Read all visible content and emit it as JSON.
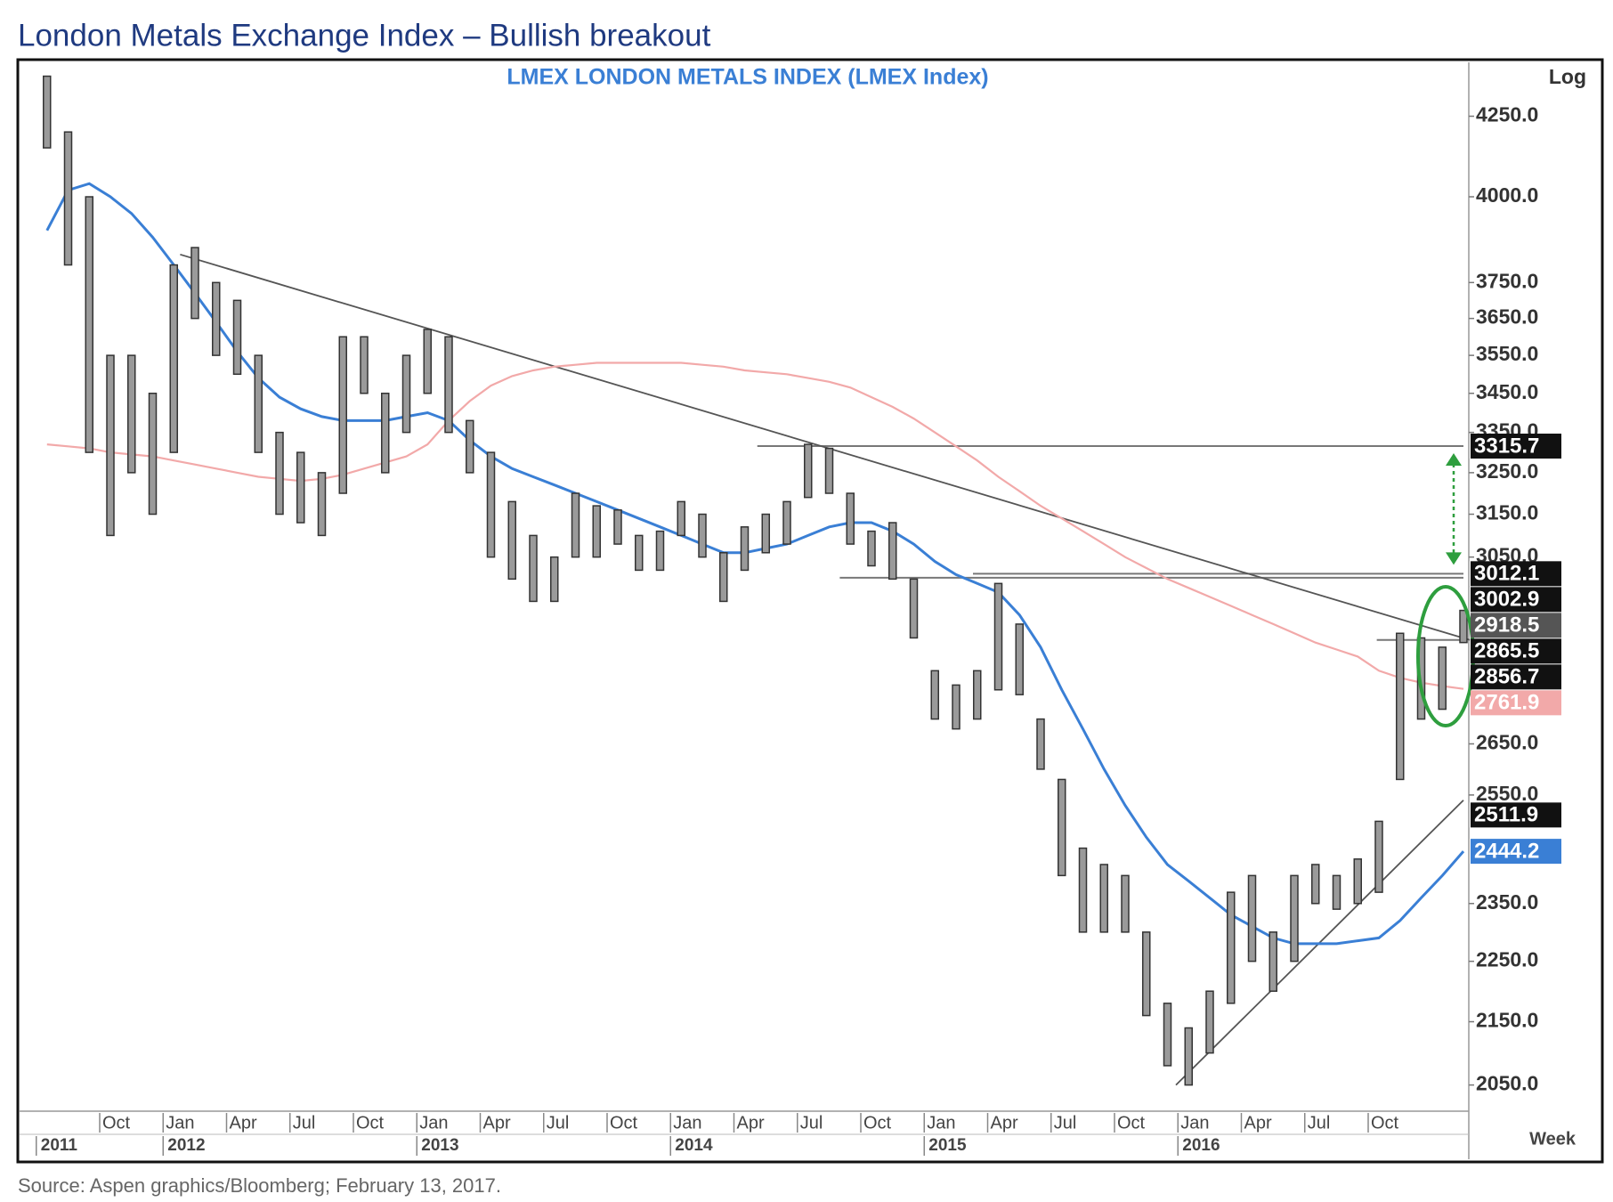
{
  "chart_data": {
    "type": "ohlc",
    "title": "London Metals Exchange Index – Bullish breakout",
    "subtitle": "LMEX  LONDON  METALS  INDEX  (LMEX Index)",
    "y_axis_label": "Log",
    "x_axis_label": "Week",
    "source": "Source: Aspen graphics/Bloomberg; February 13, 2017.",
    "log_scale": true,
    "ylim": [
      2010,
      4420
    ],
    "yticks": [
      {
        "value": 4250,
        "label": "4250.0"
      },
      {
        "value": 4000,
        "label": "4000.0"
      },
      {
        "value": 3750,
        "label": "3750.0"
      },
      {
        "value": 3650,
        "label": "3650.0"
      },
      {
        "value": 3550,
        "label": "3550.0"
      },
      {
        "value": 3450,
        "label": "3450.0"
      },
      {
        "value": 3350,
        "label": "3350.0"
      },
      {
        "value": 3250,
        "label": "3250.0"
      },
      {
        "value": 3150,
        "label": "3150.0"
      },
      {
        "value": 3050,
        "label": "3050.0"
      },
      {
        "value": 2650,
        "label": "2650.0"
      },
      {
        "value": 2550,
        "label": "2550.0"
      },
      {
        "value": 2350,
        "label": "2350.0"
      },
      {
        "value": 2250,
        "label": "2250.0"
      },
      {
        "value": 2150,
        "label": "2150.0"
      },
      {
        "value": 2050,
        "label": "2050.0"
      }
    ],
    "categories": [
      null,
      null,
      null,
      "Oct",
      null,
      null,
      "Jan",
      null,
      null,
      "Apr",
      null,
      null,
      "Jul",
      null,
      null,
      "Oct",
      null,
      null,
      "Jan",
      null,
      null,
      "Apr",
      null,
      null,
      "Jul",
      null,
      null,
      "Oct",
      null,
      null,
      "Jan",
      null,
      null,
      "Apr",
      null,
      null,
      "Jul",
      null,
      null,
      "Oct",
      null,
      null,
      "Jan",
      null,
      null,
      "Apr",
      null,
      null,
      "Jul",
      null,
      null,
      "Oct",
      null,
      null,
      "Jan",
      null,
      null,
      "Apr",
      null,
      null,
      "Jul",
      null,
      null,
      "Oct",
      null,
      null,
      null,
      null
    ],
    "years": [
      "2011",
      null,
      null,
      null,
      null,
      null,
      "2012",
      null,
      null,
      null,
      null,
      null,
      null,
      null,
      null,
      null,
      null,
      null,
      "2013",
      null,
      null,
      null,
      null,
      null,
      null,
      null,
      null,
      null,
      null,
      null,
      "2014",
      null,
      null,
      null,
      null,
      null,
      null,
      null,
      null,
      null,
      null,
      null,
      "2015",
      null,
      null,
      null,
      null,
      null,
      null,
      null,
      null,
      null,
      null,
      null,
      "2016",
      null,
      null,
      null,
      null,
      null,
      null,
      null,
      null,
      null,
      null,
      null,
      null,
      null
    ],
    "high": [
      4380,
      4200,
      4000,
      3550,
      3550,
      3450,
      3800,
      3850,
      3750,
      3700,
      3550,
      3350,
      3300,
      3250,
      3600,
      3600,
      3450,
      3550,
      3620,
      3600,
      3380,
      3300,
      3180,
      3100,
      3050,
      3200,
      3170,
      3160,
      3100,
      3110,
      3180,
      3150,
      3060,
      3120,
      3150,
      3180,
      3320,
      3310,
      3200,
      3110,
      3130,
      3000,
      2800,
      2770,
      2800,
      2990,
      2900,
      2700,
      2580,
      2450,
      2420,
      2400,
      2300,
      2180,
      2140,
      2200,
      2370,
      2400,
      2300,
      2400,
      2420,
      2400,
      2430,
      2500,
      2880,
      2870,
      2850,
      2930
    ],
    "low": [
      4150,
      3800,
      3300,
      3100,
      3250,
      3150,
      3300,
      3650,
      3550,
      3500,
      3300,
      3150,
      3130,
      3100,
      3200,
      3450,
      3250,
      3350,
      3450,
      3350,
      3250,
      3050,
      3000,
      2950,
      2950,
      3050,
      3050,
      3080,
      3020,
      3020,
      3100,
      3050,
      2950,
      3020,
      3060,
      3080,
      3190,
      3200,
      3080,
      3030,
      3000,
      2870,
      2700,
      2680,
      2700,
      2760,
      2750,
      2600,
      2400,
      2300,
      2300,
      2300,
      2160,
      2080,
      2050,
      2100,
      2180,
      2250,
      2200,
      2250,
      2350,
      2340,
      2350,
      2370,
      2580,
      2700,
      2720,
      2860
    ],
    "bar_color": "#9a9a9a",
    "moving_averages": [
      {
        "color": "#3a7fd5",
        "values": [
          3900,
          4020,
          4040,
          4000,
          3950,
          3880,
          3800,
          3720,
          3640,
          3560,
          3490,
          3440,
          3410,
          3390,
          3380,
          3380,
          3380,
          3390,
          3400,
          3380,
          3330,
          3290,
          3260,
          3240,
          3220,
          3200,
          3180,
          3160,
          3140,
          3120,
          3100,
          3080,
          3060,
          3060,
          3070,
          3080,
          3100,
          3120,
          3130,
          3130,
          3110,
          3080,
          3040,
          3010,
          2990,
          2970,
          2920,
          2850,
          2760,
          2680,
          2600,
          2530,
          2470,
          2420,
          2390,
          2360,
          2330,
          2310,
          2290,
          2280,
          2280,
          2280,
          2285,
          2290,
          2320,
          2360,
          2400,
          2444.2
        ]
      },
      {
        "color": "#f2a9a9",
        "values": [
          3320,
          3315,
          3310,
          3300,
          3295,
          3290,
          3280,
          3270,
          3260,
          3250,
          3240,
          3235,
          3230,
          3235,
          3245,
          3260,
          3275,
          3290,
          3320,
          3380,
          3430,
          3470,
          3495,
          3510,
          3520,
          3525,
          3530,
          3530,
          3530,
          3530,
          3530,
          3525,
          3520,
          3510,
          3505,
          3500,
          3490,
          3480,
          3465,
          3440,
          3415,
          3385,
          3350,
          3315,
          3280,
          3240,
          3205,
          3170,
          3140,
          3110,
          3080,
          3050,
          3025,
          3000,
          2980,
          2960,
          2940,
          2920,
          2900,
          2880,
          2860,
          2845,
          2830,
          2800,
          2785,
          2775,
          2768,
          2761.9
        ]
      }
    ],
    "levels": [
      {
        "value": 3315.7,
        "color": "#111111"
      },
      {
        "value": 3012.1,
        "color": "#111111"
      },
      {
        "value": 3002.9,
        "color": "#111111"
      },
      {
        "value": 2918.5,
        "color": "#555555"
      },
      {
        "value": 2865.5,
        "color": "#111111"
      },
      {
        "value": 2856.7,
        "color": "#111111"
      },
      {
        "value": 2761.9,
        "color": "#f2a9a9"
      },
      {
        "value": 2511.9,
        "color": "#111111"
      },
      {
        "value": 2444.2,
        "color": "#3a7fd5"
      }
    ],
    "trendlines": [
      {
        "from": 3830,
        "to": 2865.5
      },
      {
        "from": 2050,
        "to": 2540
      }
    ],
    "annotation_color": "#2e9e3e"
  }
}
